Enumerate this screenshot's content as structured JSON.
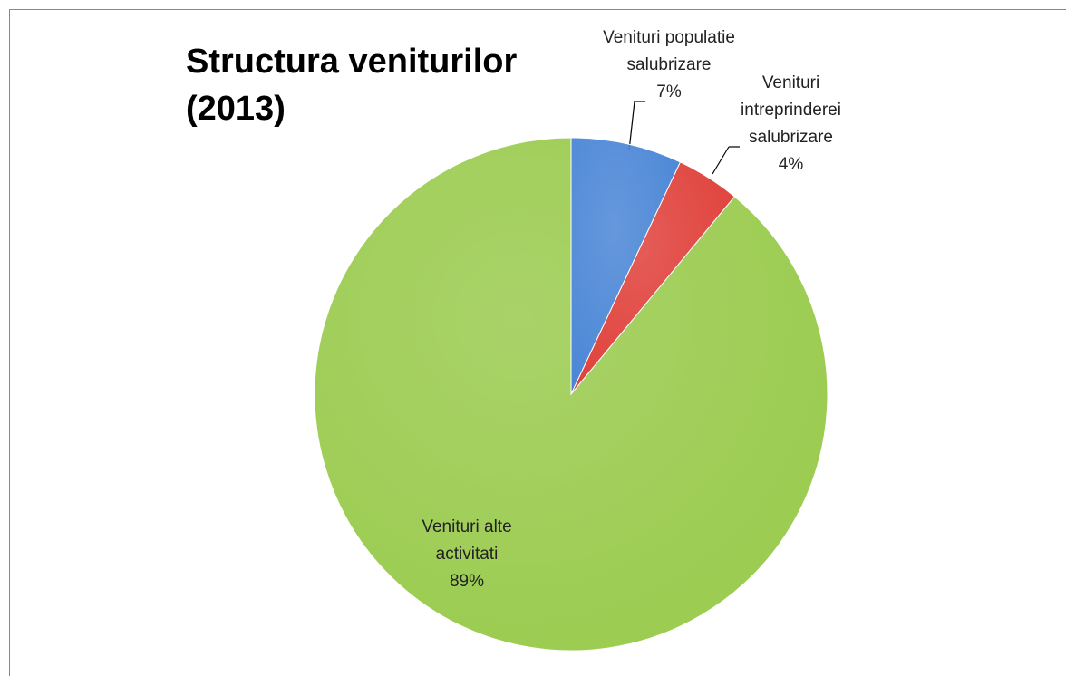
{
  "chart_data": {
    "type": "pie",
    "title": "Structura veniturilor (2013)",
    "categories": [
      "Venituri populatie salubrizare",
      "Venituri intreprinderei salubrizare",
      "Venituri alte activitati"
    ],
    "values": [
      7,
      4,
      89
    ],
    "value_labels": [
      "7%",
      "4%",
      "89%"
    ],
    "colors": [
      "#4a86d6",
      "#e0403a",
      "#9acb4e"
    ]
  }
}
